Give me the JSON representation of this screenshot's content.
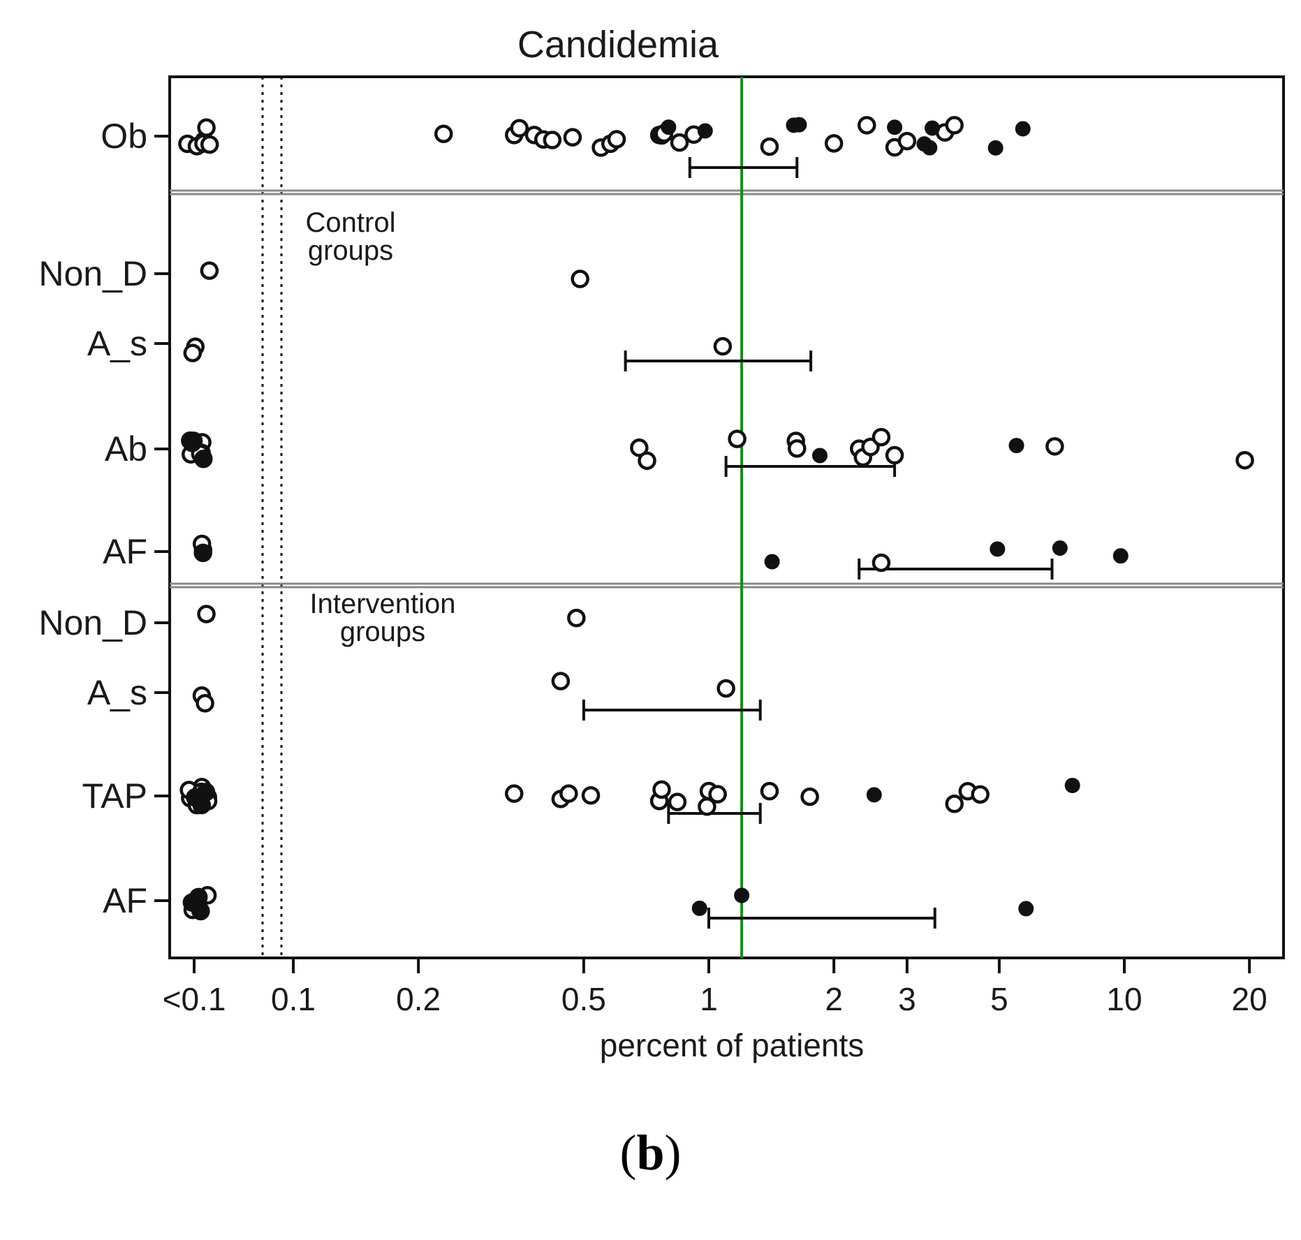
{
  "chart_data": {
    "type": "scatter",
    "title": "Candidemia",
    "xlabel": "percent of patients",
    "xscale": "log",
    "x_ticks": [
      {
        "label": "<0.1",
        "value": null
      },
      {
        "label": "0.1",
        "value": 0.1
      },
      {
        "label": "0.2",
        "value": 0.2
      },
      {
        "label": "0.5",
        "value": 0.5
      },
      {
        "label": "1",
        "value": 1
      },
      {
        "label": "2",
        "value": 2
      },
      {
        "label": "3",
        "value": 3
      },
      {
        "label": "5",
        "value": 5
      },
      {
        "label": "10",
        "value": 10
      },
      {
        "label": "20",
        "value": 20
      }
    ],
    "reference_line": {
      "value": 1.2,
      "color": "#1a8a1a"
    },
    "legend_markers": {
      "open": "open circle",
      "filled": "filled circle"
    },
    "sections": [
      {
        "name": "observational",
        "label": "",
        "rows": [
          "Ob"
        ]
      },
      {
        "name": "control",
        "label_lines": [
          "Control",
          "groups"
        ],
        "rows": [
          "Non_D",
          "A_s",
          "Ab",
          "AF"
        ]
      },
      {
        "name": "intervention",
        "label_lines": [
          "Intervention",
          "groups"
        ],
        "rows": [
          "Non_D",
          "A_s",
          "TAP",
          "AF"
        ]
      }
    ],
    "groups": [
      {
        "label": "Ob",
        "section": "observational",
        "below_count_open": 6,
        "below_count_filled": 0,
        "open": [
          0.23,
          0.34,
          0.35,
          0.38,
          0.4,
          0.42,
          0.47,
          0.55,
          0.58,
          0.6,
          0.76,
          0.77,
          0.78,
          0.85,
          0.92,
          1.4,
          2.0,
          2.4,
          2.8,
          3.0,
          3.7,
          3.9
        ],
        "filled": [
          0.8,
          0.98,
          1.6,
          1.65,
          2.8,
          3.3,
          3.4,
          3.45,
          4.9,
          5.7
        ],
        "ci": [
          0.9,
          1.63
        ]
      },
      {
        "label": "Non_D",
        "section": "control",
        "below_count_open": 1,
        "below_count_filled": 0,
        "open": [
          0.49
        ],
        "filled": [],
        "ci": null
      },
      {
        "label": "A_s",
        "section": "control",
        "below_count_open": 2,
        "below_count_filled": 0,
        "open": [
          1.08
        ],
        "filled": [],
        "ci": [
          0.63,
          1.76
        ]
      },
      {
        "label": "Ab",
        "section": "control",
        "below_count_open": 8,
        "below_count_filled": 2,
        "open": [
          0.68,
          0.71,
          1.17,
          1.62,
          1.63,
          2.3,
          2.35,
          2.45,
          2.6,
          2.8,
          6.8,
          19.5
        ],
        "filled": [
          1.85,
          5.5
        ],
        "ci": [
          1.1,
          2.8
        ]
      },
      {
        "label": "AF",
        "section": "control",
        "below_count_open": 2,
        "below_count_filled": 1,
        "open": [
          2.6
        ],
        "filled": [
          1.42,
          4.95,
          7.0,
          9.8
        ],
        "ci": [
          2.3,
          6.7
        ]
      },
      {
        "label": "Non_D",
        "section": "intervention",
        "below_count_open": 1,
        "below_count_filled": 0,
        "open": [
          0.48
        ],
        "filled": [],
        "ci": null
      },
      {
        "label": "A_s",
        "section": "intervention",
        "below_count_open": 2,
        "below_count_filled": 0,
        "open": [
          0.44,
          1.1
        ],
        "filled": [],
        "ci": [
          0.5,
          1.33
        ]
      },
      {
        "label": "TAP",
        "section": "intervention",
        "below_count_open": 8,
        "below_count_filled": 3,
        "open": [
          0.34,
          0.44,
          0.46,
          0.52,
          0.76,
          0.77,
          0.84,
          0.99,
          1.0,
          1.05,
          1.4,
          1.75,
          3.9,
          4.2,
          4.5
        ],
        "filled": [
          2.5,
          7.5
        ],
        "ci": [
          0.8,
          1.33
        ]
      },
      {
        "label": "AF",
        "section": "intervention",
        "below_count_open": 2,
        "below_count_filled": 3,
        "open": [],
        "filled": [
          0.95,
          1.2,
          5.8
        ],
        "ci": [
          1.0,
          3.5
        ]
      }
    ]
  },
  "caption": {
    "open": "(",
    "letter": "b",
    "close": ")"
  }
}
